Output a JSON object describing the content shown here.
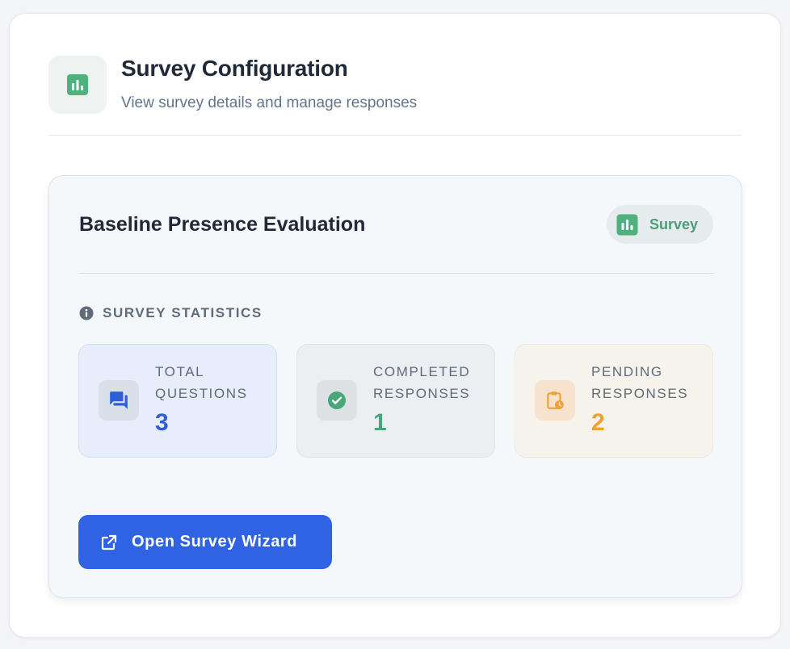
{
  "header": {
    "icon": "bar-chart-icon",
    "title": "Survey Configuration",
    "subtitle": "View survey details and manage responses"
  },
  "survey": {
    "name": "Baseline Presence Evaluation",
    "badge": {
      "icon": "bar-chart-icon",
      "label": "Survey"
    }
  },
  "statistics": {
    "section_icon": "info-icon",
    "section_label": "SURVEY STATISTICS",
    "items": [
      {
        "key": "total",
        "icon": "chat-bubbles-icon",
        "label": "TOTAL QUESTIONS",
        "value": "3",
        "color": "#2f5fd8"
      },
      {
        "key": "completed",
        "icon": "check-circle-icon",
        "label": "COMPLETED RESPONSES",
        "value": "1",
        "color": "#48a678"
      },
      {
        "key": "pending",
        "icon": "clipboard-clock-icon",
        "label": "PENDING RESPONSES",
        "value": "2",
        "color": "#f0a132"
      }
    ]
  },
  "actions": {
    "open_wizard": {
      "icon": "open-external-icon",
      "label": "Open Survey Wizard"
    }
  },
  "colors": {
    "accent": "#2f63e4",
    "brand_green": "#4e9c78",
    "pending_orange": "#f0a132"
  }
}
